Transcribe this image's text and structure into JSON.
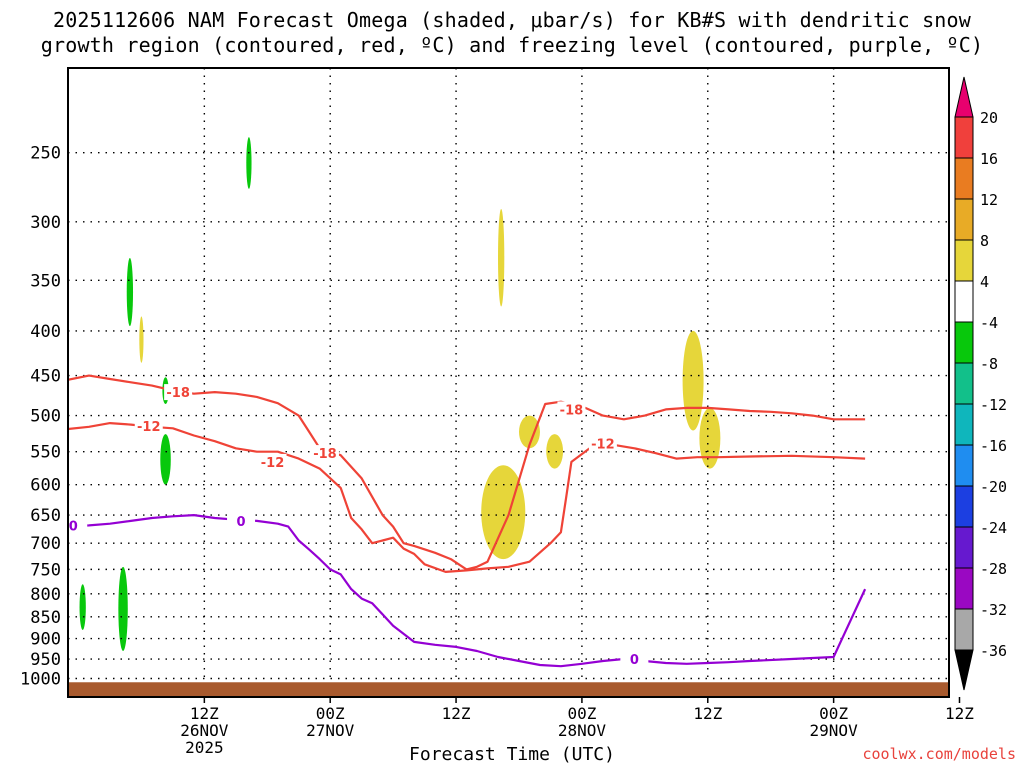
{
  "title_line1": "2025112606 NAM Forecast Omega (shaded, μbar/s) for KB#S with dendritic snow",
  "title_line2": "growth region (contoured, red, ºC) and freezing level (contoured, purple, ºC)",
  "credit": "coolwx.com/models",
  "chart_data": {
    "type": "heatmap",
    "xlabel": "Forecast Time (UTC)",
    "ylabel": "",
    "y_log": true,
    "ylim": [
      1050,
      200
    ],
    "y_ticks": [
      250,
      300,
      350,
      400,
      450,
      500,
      550,
      600,
      650,
      700,
      750,
      800,
      850,
      900,
      950,
      1000
    ],
    "xlim": [
      -7,
      77
    ],
    "x_ticks": [
      {
        "hour": 6,
        "line1": "12Z",
        "line2": "26NOV",
        "line3": "2025"
      },
      {
        "hour": 18,
        "line1": "00Z",
        "line2": "27NOV",
        "line3": ""
      },
      {
        "hour": 30,
        "line1": "12Z",
        "line2": "",
        "line3": ""
      },
      {
        "hour": 42,
        "line1": "00Z",
        "line2": "28NOV",
        "line3": ""
      },
      {
        "hour": 54,
        "line1": "12Z",
        "line2": "",
        "line3": ""
      },
      {
        "hour": 66,
        "line1": "00Z",
        "line2": "29NOV",
        "line3": ""
      },
      {
        "hour": 78,
        "line1": "12Z",
        "line2": "",
        "line3": ""
      }
    ],
    "colorbar": {
      "labels": [
        "20",
        "16",
        "12",
        "8",
        "4",
        "-4",
        "-8",
        "-12",
        "-16",
        "-20",
        "-24",
        "-28",
        "-32",
        "-36"
      ],
      "colors": [
        "#f0403c",
        "#e97c21",
        "#e8ab26",
        "#e6d63a",
        "#ffffff",
        "#08c80c",
        "#12c08a",
        "#0fb6bc",
        "#1f8df0",
        "#1c3fe1",
        "#6619cf",
        "#9a08c2",
        "#a8a8a8"
      ],
      "top_color": "#e8006e",
      "bottom_color": "#000000"
    },
    "omega_blobs": [
      {
        "x": [
          10.0,
          10.5
        ],
        "y": [
          240,
          275
        ],
        "value": -6
      },
      {
        "x": [
          -1.4,
          -0.8
        ],
        "y": [
          330,
          395
        ],
        "value": -6
      },
      {
        "x": [
          -0.2,
          0.2
        ],
        "y": [
          385,
          435
        ],
        "value": 6
      },
      {
        "x": [
          2.0,
          2.6
        ],
        "y": [
          452,
          485
        ],
        "value": -6
      },
      {
        "x": [
          1.8,
          2.8
        ],
        "y": [
          525,
          600
        ],
        "value": -6
      },
      {
        "x": [
          -5.9,
          -5.3
        ],
        "y": [
          780,
          880
        ],
        "value": -6
      },
      {
        "x": [
          -2.2,
          -1.3
        ],
        "y": [
          745,
          930
        ],
        "value": -6
      },
      {
        "x": [
          34.0,
          34.6
        ],
        "y": [
          290,
          375
        ],
        "value": 6
      },
      {
        "x": [
          32.4,
          36.6
        ],
        "y": [
          570,
          730
        ],
        "value": 6
      },
      {
        "x": [
          36.0,
          38.0
        ],
        "y": [
          500,
          545
        ],
        "value": 6
      },
      {
        "x": [
          38.6,
          40.2
        ],
        "y": [
          525,
          575
        ],
        "value": 6
      },
      {
        "x": [
          51.6,
          53.6
        ],
        "y": [
          400,
          520
        ],
        "value": 6
      },
      {
        "x": [
          53.2,
          55.2
        ],
        "y": [
          490,
          575
        ],
        "value": 6
      }
    ],
    "contours": [
      {
        "name": "-18",
        "color": "#ef4337",
        "x": [
          -7,
          -5,
          -3,
          -1,
          1,
          3,
          5,
          7,
          9,
          11,
          13,
          15,
          16,
          17,
          19,
          21,
          23,
          24,
          25,
          26,
          28,
          29.5,
          31,
          32,
          33,
          35,
          37,
          38.5,
          40,
          42,
          44,
          46,
          48,
          50,
          52,
          54,
          56,
          58,
          60,
          62,
          64,
          66,
          69
        ],
        "y": [
          455,
          450,
          454,
          458,
          462,
          468,
          472,
          470,
          472,
          476,
          484,
          500,
          522,
          545,
          555,
          590,
          650,
          670,
          700,
          705,
          718,
          730,
          750,
          745,
          735,
          650,
          540,
          485,
          482,
          488,
          500,
          505,
          500,
          492,
          490,
          490,
          492,
          494,
          495,
          497,
          500,
          505,
          505
        ],
        "labels": [
          {
            "x": 3.5,
            "y": 470
          },
          {
            "x": 17.5,
            "y": 552
          },
          {
            "x": 41,
            "y": 492
          }
        ]
      },
      {
        "name": "-12",
        "color": "#ef4337",
        "x": [
          -7,
          -5,
          -3,
          -1,
          1,
          3,
          5,
          7,
          9,
          11,
          13,
          15,
          17,
          19,
          20,
          21,
          22,
          23,
          24,
          25,
          26,
          27,
          29,
          31,
          32,
          33,
          35,
          37,
          39,
          40,
          40.5,
          41,
          43,
          45,
          47,
          49,
          51,
          53,
          55,
          58,
          62,
          66,
          69
        ],
        "y": [
          518,
          515,
          510,
          512,
          515,
          517,
          527,
          535,
          545,
          550,
          550,
          560,
          575,
          605,
          655,
          675,
          700,
          695,
          690,
          710,
          720,
          740,
          755,
          752,
          750,
          748,
          745,
          735,
          700,
          680,
          620,
          565,
          542,
          540,
          545,
          552,
          560,
          558,
          558,
          557,
          556,
          558,
          560
        ],
        "labels": [
          {
            "x": 0.7,
            "y": 514
          },
          {
            "x": 12.5,
            "y": 565
          },
          {
            "x": 44,
            "y": 538
          }
        ]
      },
      {
        "name": "0",
        "color": "#9400d3",
        "x": [
          -7,
          -5,
          -3,
          -1,
          1,
          3,
          5,
          7,
          9,
          11,
          13,
          14,
          15,
          16,
          17,
          18,
          19,
          20,
          21,
          22,
          24,
          26,
          28,
          30,
          32,
          34,
          36,
          38,
          40,
          42,
          44,
          46,
          48,
          50,
          52,
          54,
          56,
          58,
          62,
          66,
          69
        ],
        "y": [
          670,
          668,
          665,
          660,
          655,
          652,
          650,
          655,
          658,
          660,
          665,
          670,
          695,
          712,
          730,
          750,
          760,
          790,
          810,
          820,
          870,
          908,
          915,
          920,
          930,
          945,
          955,
          965,
          968,
          962,
          955,
          950,
          955,
          960,
          962,
          960,
          958,
          955,
          950,
          945,
          790
        ],
        "labels": [
          {
            "x": -6.5,
            "y": 668
          },
          {
            "x": 9.5,
            "y": 660
          },
          {
            "x": 47,
            "y": 950
          }
        ]
      }
    ],
    "terrain": {
      "color": "#a85a2e",
      "surface_pressure": 1010
    }
  }
}
